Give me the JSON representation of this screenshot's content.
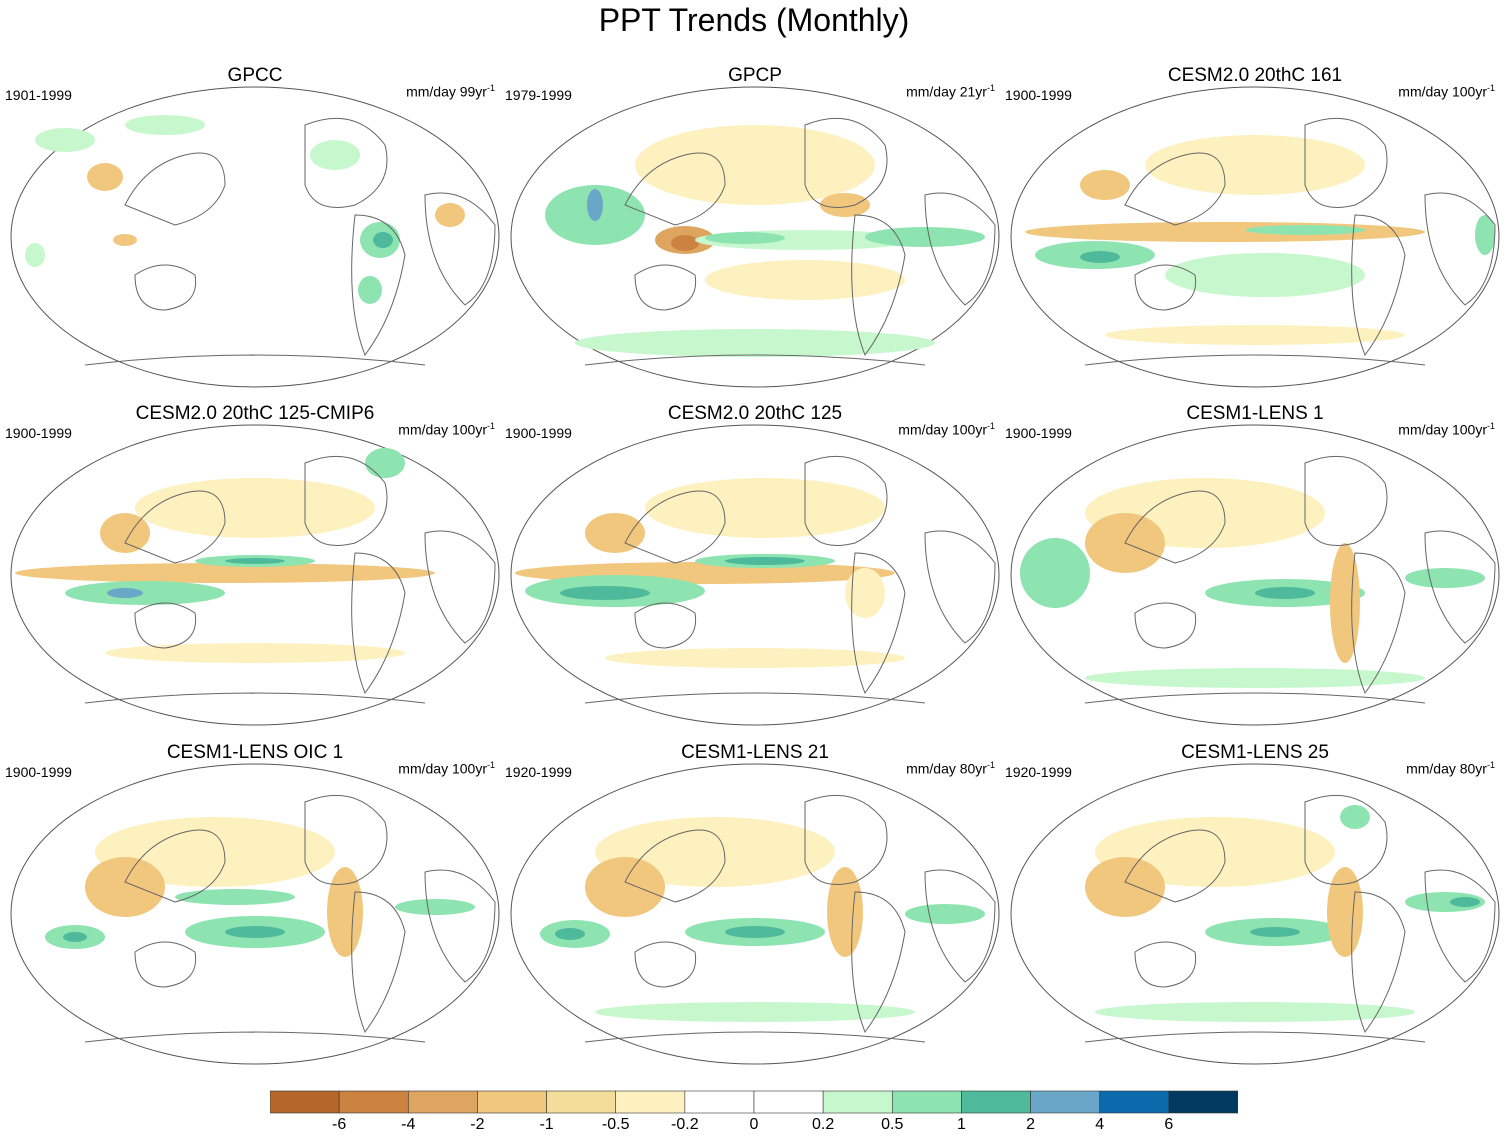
{
  "title": "PPT Trends (Monthly)",
  "palette": {
    "-6": "#b5662a",
    "-4": "#cc8341",
    "-2": "#dea560",
    "-1": "#f1c77e",
    "-0.5": "#f3dd9a",
    "-0.2": "#fdf1c0",
    "0": "#ffffff",
    "0.2": "#ffffff",
    "0.5": "#c7f8cd",
    "1": "#8de4b0",
    "2": "#4fba9b",
    "4": "#6aa6c8",
    "6": "#0b6aac",
    "7": "#013a5e"
  },
  "panels": [
    {
      "title": "GPCC",
      "period": "1901-1999",
      "units": "mm/day 99yr",
      "units_exp": "-1"
    },
    {
      "title": "GPCP",
      "period": "1979-1999",
      "units": "mm/day 21yr",
      "units_exp": "-1"
    },
    {
      "title": "CESM2.0 20thC 161",
      "period": "1900-1999",
      "units": "mm/day 100yr",
      "units_exp": "-1"
    },
    {
      "title": "CESM2.0 20thC 125-CMIP6",
      "period": "1900-1999",
      "units": "mm/day 100yr",
      "units_exp": "-1"
    },
    {
      "title": "CESM2.0 20thC 125",
      "period": "1900-1999",
      "units": "mm/day 100yr",
      "units_exp": "-1"
    },
    {
      "title": "CESM1-LENS 1",
      "period": "1900-1999",
      "units": "mm/day 100yr",
      "units_exp": "-1"
    },
    {
      "title": "CESM1-LENS OIC 1",
      "period": "1900-1999",
      "units": "mm/day 100yr",
      "units_exp": "-1"
    },
    {
      "title": "CESM1-LENS 21",
      "period": "1920-1999",
      "units": "mm/day 80yr",
      "units_exp": "-1"
    },
    {
      "title": "CESM1-LENS 25",
      "period": "1920-1999",
      "units": "mm/day 80yr",
      "units_exp": "-1"
    }
  ],
  "colorbar": {
    "colors": [
      "#b5662a",
      "#cc8341",
      "#dea560",
      "#f1c77e",
      "#f3dd9a",
      "#fdf1c0",
      "#ffffff",
      "#ffffff",
      "#c7f8cd",
      "#8de4b0",
      "#4fba9b",
      "#6aa6c8",
      "#0b6aac",
      "#013a5e"
    ],
    "labels": [
      "-6",
      "-4",
      "-2",
      "-1",
      "-0.5",
      "-0.2",
      "0",
      "0.2",
      "0.5",
      "1",
      "2",
      "4",
      "6"
    ]
  }
}
